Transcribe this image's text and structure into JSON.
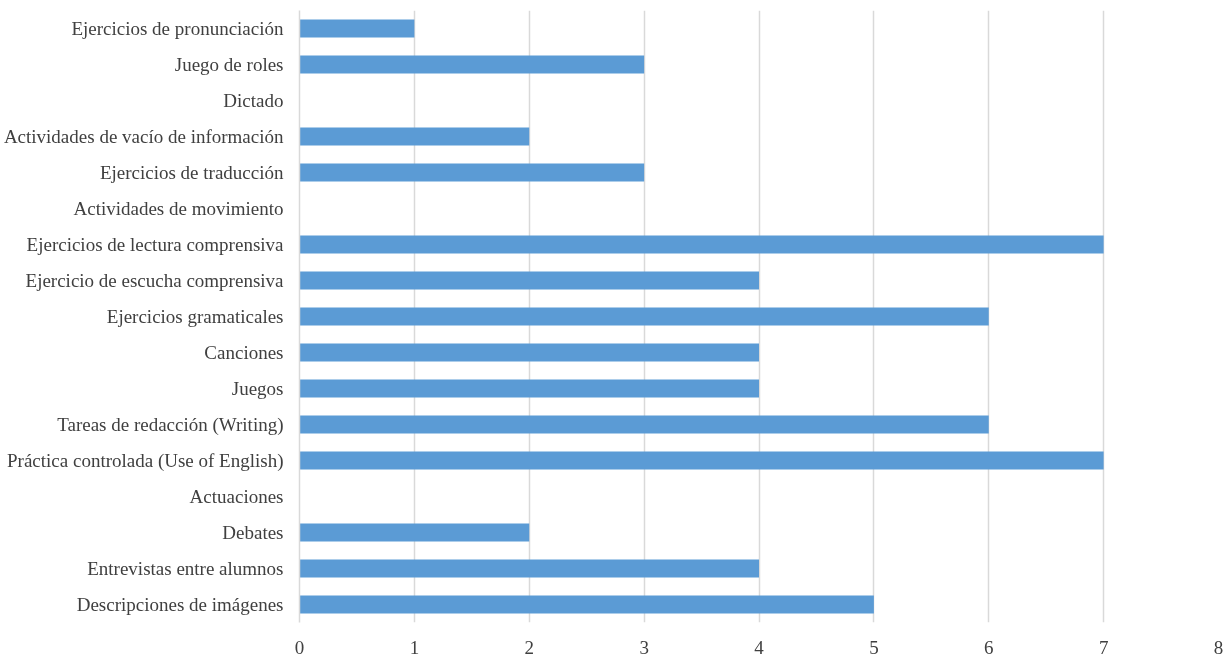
{
  "chart_data": {
    "type": "bar",
    "orientation": "horizontal",
    "categories": [
      "Ejercicios de pronunciación",
      "Juego de roles",
      "Dictado",
      "Actividades de vacío de información",
      "Ejercicios de traducción",
      "Actividades de movimiento",
      "Ejercicios de lectura comprensiva",
      "Ejercicio de escucha comprensiva",
      "Ejercicios gramaticales",
      "Canciones",
      "Juegos",
      "Tareas de redacción (Writing)",
      "Práctica controlada (Use of English)",
      "Actuaciones",
      "Debates",
      "Entrevistas entre alumnos",
      "Descripciones de imágenes"
    ],
    "values": [
      1,
      3,
      0,
      2,
      3,
      0,
      7,
      4,
      6,
      4,
      4,
      6,
      7,
      0,
      2,
      4,
      5
    ],
    "color": "#5b9bd5",
    "xlim": [
      0,
      8
    ],
    "xticks": [
      0,
      1,
      2,
      3,
      4,
      5,
      6,
      7,
      8
    ],
    "grid": "x"
  }
}
